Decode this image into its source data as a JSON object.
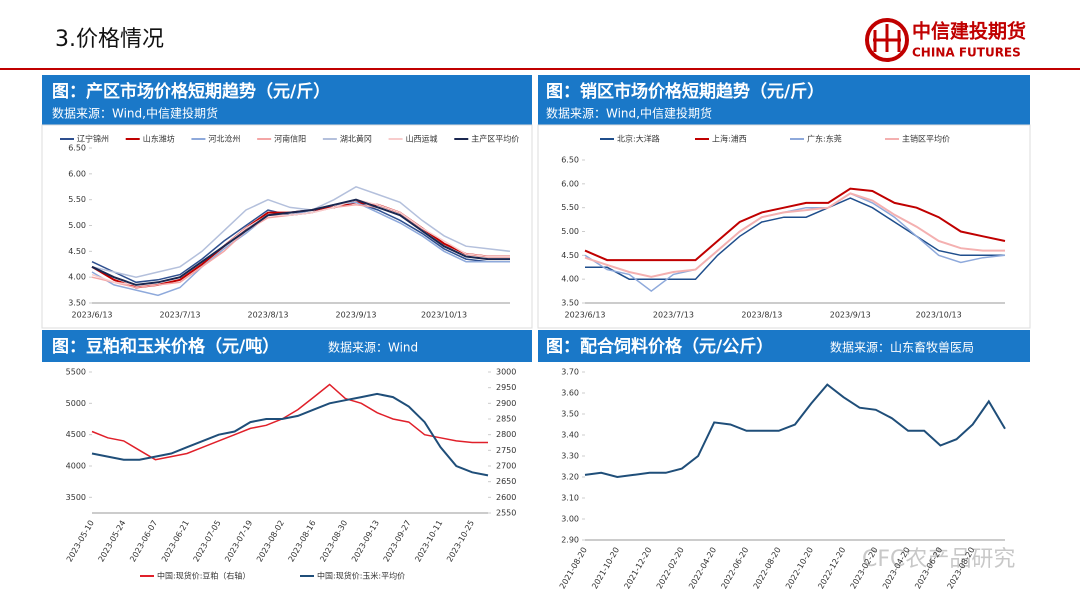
{
  "header": {
    "title": "3.价格情况",
    "logo_cn": "中信建投期货",
    "logo_en": "CHINA FUTURES"
  },
  "watermark": "CFC农产品研究",
  "chart_data": [
    {
      "type": "line",
      "title": "图：产区市场价格短期趋势（元/斤）",
      "source": "数据来源：Wind,中信建投期货",
      "legend": "top",
      "categories": [
        "2023/6/13",
        null,
        null,
        null,
        "2023/7/13",
        null,
        null,
        null,
        "2023/8/13",
        null,
        null,
        null,
        "2023/9/13",
        null,
        null,
        null,
        "2023/10/13",
        null,
        null,
        null
      ],
      "ylim": [
        3.5,
        6.5
      ],
      "yticks": [
        {
          "value": 3.5,
          "label": "3.50"
        },
        {
          "value": 4,
          "label": "4.00"
        },
        {
          "value": 4.5,
          "label": "4.50"
        },
        {
          "value": 5,
          "label": "5.00"
        },
        {
          "value": 5.5,
          "label": "5.50"
        },
        {
          "value": 6,
          "label": "6.00"
        },
        {
          "value": 6.5,
          "label": "6.50"
        }
      ],
      "series": [
        {
          "name": "辽宁锦州",
          "color": "#2e4f8f",
          "values": [
            4.3,
            4.1,
            3.9,
            3.95,
            4.05,
            4.35,
            4.7,
            5.0,
            5.3,
            5.2,
            5.25,
            5.4,
            5.45,
            5.3,
            5.1,
            4.85,
            4.55,
            4.35,
            4.3,
            4.3
          ]
        },
        {
          "name": "山东潍坊",
          "color": "#c00000",
          "values": [
            4.2,
            3.95,
            3.8,
            3.85,
            3.95,
            4.25,
            4.6,
            4.95,
            5.25,
            5.25,
            5.3,
            5.35,
            5.45,
            5.4,
            5.25,
            4.95,
            4.65,
            4.45,
            4.4,
            4.4
          ]
        },
        {
          "name": "河北沧州",
          "color": "#8ea9db",
          "values": [
            4.1,
            3.85,
            3.75,
            3.65,
            3.8,
            4.2,
            4.55,
            4.85,
            5.2,
            5.2,
            5.3,
            5.4,
            5.45,
            5.25,
            5.05,
            4.8,
            4.5,
            4.3,
            4.3,
            4.3
          ]
        },
        {
          "name": "河南信阳",
          "color": "#f4a6a6",
          "values": [
            4.0,
            3.9,
            3.8,
            3.85,
            3.9,
            4.2,
            4.5,
            4.9,
            5.15,
            5.2,
            5.25,
            5.35,
            5.4,
            5.35,
            5.2,
            4.9,
            4.6,
            4.4,
            4.35,
            4.35
          ]
        },
        {
          "name": "湖北黄冈",
          "color": "#b4c0dc",
          "values": [
            4.2,
            4.1,
            4.0,
            4.1,
            4.2,
            4.5,
            4.9,
            5.3,
            5.5,
            5.35,
            5.3,
            5.5,
            5.75,
            5.6,
            5.45,
            5.1,
            4.8,
            4.6,
            4.55,
            4.5
          ]
        },
        {
          "name": "山西运城",
          "color": "#f8cccc",
          "values": [
            4.05,
            3.9,
            3.85,
            3.9,
            4.0,
            4.3,
            4.6,
            4.95,
            5.2,
            5.2,
            5.25,
            5.35,
            5.5,
            5.4,
            5.25,
            4.95,
            4.7,
            4.45,
            4.4,
            4.4
          ]
        },
        {
          "name": "主产区平均价",
          "color": "#1a2750",
          "values": [
            4.2,
            4.0,
            3.85,
            3.9,
            4.0,
            4.3,
            4.6,
            4.9,
            5.2,
            5.25,
            5.3,
            5.4,
            5.5,
            5.35,
            5.2,
            4.9,
            4.6,
            4.4,
            4.35,
            4.35
          ]
        }
      ]
    },
    {
      "type": "line",
      "title": "图：销区市场价格短期趋势（元/斤）",
      "source": "数据来源：Wind,中信建投期货",
      "legend": "top",
      "categories": [
        "2023/6/13",
        null,
        null,
        null,
        "2023/7/13",
        null,
        null,
        null,
        "2023/8/13",
        null,
        null,
        null,
        "2023/9/13",
        null,
        null,
        null,
        "2023/10/13",
        null,
        null,
        null
      ],
      "ylim": [
        3.5,
        6.5
      ],
      "yticks": [
        {
          "value": 3.5,
          "label": "3.50"
        },
        {
          "value": 4,
          "label": "4.00"
        },
        {
          "value": 4.5,
          "label": "4.50"
        },
        {
          "value": 5,
          "label": "5.00"
        },
        {
          "value": 5.5,
          "label": "5.50"
        },
        {
          "value": 6,
          "label": "6.00"
        },
        {
          "value": 6.5,
          "label": "6.50"
        }
      ],
      "series": [
        {
          "name": "北京:大洋路",
          "color": "#1f4e8c",
          "values": [
            4.25,
            4.25,
            4.0,
            4.0,
            4.0,
            4.0,
            4.5,
            4.9,
            5.2,
            5.3,
            5.3,
            5.5,
            5.7,
            5.5,
            5.2,
            4.9,
            4.6,
            4.5,
            4.5,
            4.5
          ]
        },
        {
          "name": "上海:浦西",
          "color": "#c00000",
          "values": [
            4.6,
            4.4,
            4.4,
            4.4,
            4.4,
            4.4,
            4.8,
            5.2,
            5.4,
            5.5,
            5.6,
            5.6,
            5.9,
            5.85,
            5.6,
            5.5,
            5.3,
            5.0,
            4.9,
            4.8
          ]
        },
        {
          "name": "广东:东莞",
          "color": "#8ea9db",
          "values": [
            4.5,
            4.2,
            4.1,
            3.75,
            4.1,
            4.2,
            4.6,
            5.0,
            5.3,
            5.4,
            5.5,
            5.5,
            5.8,
            5.6,
            5.3,
            4.9,
            4.5,
            4.35,
            4.45,
            4.5
          ]
        },
        {
          "name": "主销区平均价",
          "color": "#f4b0b0",
          "values": [
            4.45,
            4.3,
            4.15,
            4.05,
            4.15,
            4.2,
            4.6,
            5.0,
            5.3,
            5.4,
            5.45,
            5.5,
            5.8,
            5.65,
            5.35,
            5.1,
            4.8,
            4.65,
            4.6,
            4.6
          ]
        }
      ]
    },
    {
      "type": "line",
      "title": "图：豆粕和玉米价格（元/吨）",
      "source": "数据来源：Wind",
      "legend": "bottom",
      "rotate_x": true,
      "categories": [
        "2023-05-10",
        null,
        "2023-05-24",
        null,
        "2023-06-07",
        null,
        "2023-06-21",
        null,
        "2023-07-05",
        null,
        "2023-07-19",
        null,
        "2023-08-02",
        null,
        "2023-08-16",
        null,
        "2023-08-30",
        null,
        "2023-09-13",
        null,
        "2023-09-27",
        null,
        "2023-10-11",
        null,
        "2023-10-25",
        null
      ],
      "ylim": [
        3250,
        5500
      ],
      "yticks": [
        3500,
        4000,
        4500,
        5000,
        5500
      ],
      "y2lim": [
        2550,
        3000
      ],
      "y2ticks": [
        2550,
        2600,
        2650,
        2700,
        2750,
        2800,
        2850,
        2900,
        2950,
        3000
      ],
      "series": [
        {
          "name": "中国:现货价:豆粕（右轴）",
          "color": "#e0202a",
          "axis": "y2",
          "values": [
            2810,
            2790,
            2780,
            2750,
            2720,
            2730,
            2740,
            2760,
            2780,
            2800,
            2820,
            2830,
            2850,
            2880,
            2920,
            2960,
            2915,
            2900,
            2870,
            2850,
            2840,
            2800,
            2790,
            2780,
            2775,
            2775
          ]
        },
        {
          "name": "中国:现货价:玉米:平均价",
          "color": "#1f4e79",
          "values": [
            4200,
            4150,
            4100,
            4100,
            4150,
            4200,
            4300,
            4400,
            4500,
            4550,
            4700,
            4750,
            4750,
            4800,
            4900,
            5000,
            5050,
            5100,
            5150,
            5100,
            4950,
            4700,
            4300,
            4000,
            3900,
            3850
          ]
        }
      ]
    },
    {
      "type": "line",
      "title": "图：配合饲料价格（元/公斤）",
      "source": "数据来源：山东畜牧兽医局",
      "legend": "none",
      "rotate_x": true,
      "categories": [
        "2021-08-20",
        null,
        "2021-10-20",
        null,
        "2021-12-20",
        null,
        "2022-02-20",
        null,
        "2022-04-20",
        null,
        "2022-06-20",
        null,
        "2022-08-20",
        null,
        "2022-10-20",
        null,
        "2022-12-20",
        null,
        "2023-02-20",
        null,
        "2023-04-20",
        null,
        "2023-06-20",
        null,
        "2023-08-20",
        null,
        null
      ],
      "ylim": [
        2.9,
        3.7
      ],
      "yticks": [
        {
          "value": 2.9,
          "label": "2.90"
        },
        {
          "value": 3.0,
          "label": "3.00"
        },
        {
          "value": 3.1,
          "label": "3.10"
        },
        {
          "value": 3.2,
          "label": "3.20"
        },
        {
          "value": 3.3,
          "label": "3.30"
        },
        {
          "value": 3.4,
          "label": "3.40"
        },
        {
          "value": 3.5,
          "label": "3.50"
        },
        {
          "value": 3.6,
          "label": "3.60"
        },
        {
          "value": 3.7,
          "label": "3.70"
        }
      ],
      "series": [
        {
          "name": "配合饲料",
          "color": "#1f4e79",
          "values": [
            3.21,
            3.22,
            3.2,
            3.21,
            3.22,
            3.22,
            3.24,
            3.3,
            3.46,
            3.45,
            3.42,
            3.42,
            3.42,
            3.45,
            3.55,
            3.64,
            3.58,
            3.53,
            3.52,
            3.48,
            3.42,
            3.42,
            3.35,
            3.38,
            3.45,
            3.56,
            3.43
          ]
        }
      ]
    }
  ]
}
